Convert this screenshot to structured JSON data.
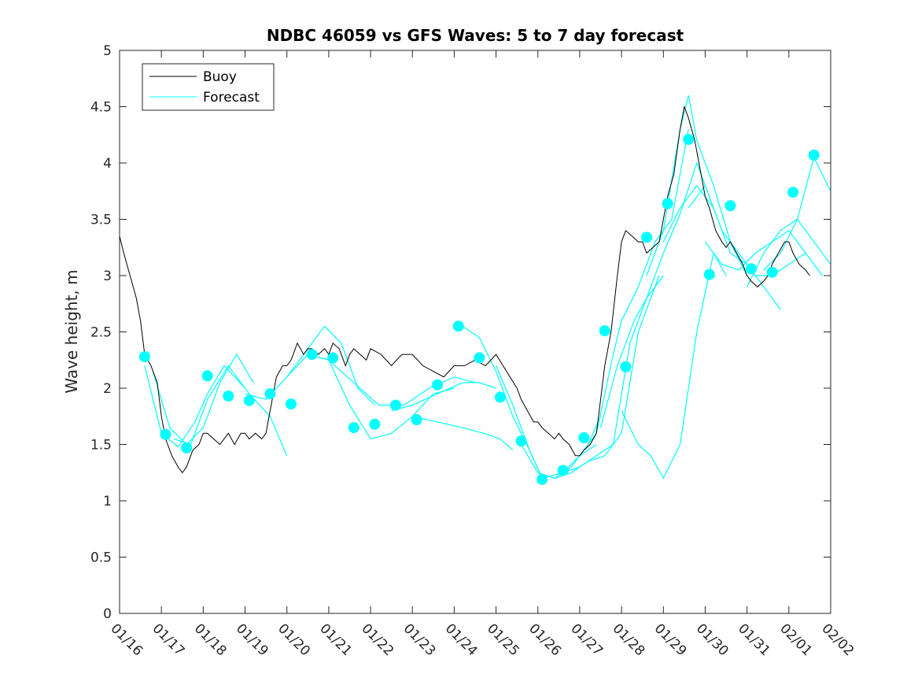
{
  "chart_data": {
    "type": "line",
    "title": "NDBC 46059 vs GFS Waves: 5 to 7 day forecast",
    "xlabel": "",
    "ylabel": "Wave height, m",
    "xlim": [
      0,
      17
    ],
    "ylim": [
      0,
      5
    ],
    "x_tick_labels": [
      "01/16",
      "01/17",
      "01/18",
      "01/19",
      "01/20",
      "01/21",
      "01/22",
      "01/23",
      "01/24",
      "01/25",
      "01/26",
      "01/27",
      "01/28",
      "01/29",
      "01/30",
      "01/31",
      "02/01",
      "02/02"
    ],
    "y_ticks": [
      0,
      0.5,
      1,
      1.5,
      2,
      2.5,
      3,
      3.5,
      4,
      4.5,
      5
    ],
    "y_tick_labels": [
      "0",
      "0.5",
      "1",
      "1.5",
      "2",
      "2.5",
      "3",
      "3.5",
      "4",
      "4.5",
      "5"
    ],
    "x_units": "days since 01/16",
    "legend": {
      "placement": "top-left",
      "entries": [
        "Buoy",
        "Forecast"
      ]
    },
    "colors": {
      "buoy": "#000000",
      "forecast": "#00ffff",
      "axes": "#262626"
    },
    "series": [
      {
        "name": "Buoy",
        "x": [
          0,
          0.1,
          0.25,
          0.4,
          0.5,
          0.6,
          0.75,
          0.9,
          1.0,
          1.1,
          1.25,
          1.4,
          1.5,
          1.6,
          1.75,
          1.9,
          2.0,
          2.1,
          2.25,
          2.4,
          2.5,
          2.6,
          2.75,
          2.9,
          3.0,
          3.1,
          3.25,
          3.4,
          3.5,
          3.6,
          3.75,
          3.9,
          4.0,
          4.1,
          4.25,
          4.4,
          4.5,
          4.6,
          4.75,
          4.9,
          5.0,
          5.1,
          5.25,
          5.4,
          5.5,
          5.6,
          5.75,
          5.9,
          6.0,
          6.25,
          6.5,
          6.75,
          7.0,
          7.25,
          7.5,
          7.75,
          8.0,
          8.25,
          8.5,
          8.75,
          9.0,
          9.25,
          9.5,
          9.6,
          9.75,
          9.9,
          10.0,
          10.1,
          10.25,
          10.4,
          10.5,
          10.6,
          10.75,
          10.9,
          11.0,
          11.1,
          11.25,
          11.4,
          11.5,
          11.6,
          11.75,
          11.9,
          12.0,
          12.1,
          12.25,
          12.4,
          12.5,
          12.6,
          12.75,
          12.9,
          13.0,
          13.1,
          13.25,
          13.4,
          13.5,
          13.6,
          13.75,
          13.9,
          14.0,
          14.1,
          14.25,
          14.4,
          14.5,
          14.6,
          14.75,
          14.9,
          15.0,
          15.1,
          15.25,
          15.4,
          15.5,
          15.6,
          15.75,
          15.9,
          16.0,
          16.1,
          16.25,
          16.4,
          16.5
        ],
        "values": [
          3.35,
          3.2,
          3.0,
          2.8,
          2.6,
          2.3,
          2.2,
          2.05,
          1.75,
          1.55,
          1.4,
          1.3,
          1.25,
          1.3,
          1.45,
          1.5,
          1.6,
          1.6,
          1.55,
          1.5,
          1.55,
          1.6,
          1.5,
          1.6,
          1.6,
          1.55,
          1.6,
          1.55,
          1.6,
          1.8,
          2.1,
          2.2,
          2.2,
          2.25,
          2.4,
          2.3,
          2.35,
          2.35,
          2.3,
          2.35,
          2.3,
          2.4,
          2.35,
          2.2,
          2.3,
          2.35,
          2.3,
          2.25,
          2.35,
          2.3,
          2.2,
          2.3,
          2.3,
          2.2,
          2.15,
          2.1,
          2.2,
          2.2,
          2.25,
          2.2,
          2.3,
          2.15,
          2.0,
          1.9,
          1.8,
          1.7,
          1.7,
          1.65,
          1.6,
          1.55,
          1.6,
          1.55,
          1.5,
          1.4,
          1.4,
          1.45,
          1.5,
          1.6,
          1.9,
          2.2,
          2.5,
          3.0,
          3.3,
          3.4,
          3.35,
          3.3,
          3.3,
          3.2,
          3.25,
          3.3,
          3.5,
          3.7,
          3.9,
          4.3,
          4.5,
          4.4,
          4.2,
          3.9,
          3.7,
          3.6,
          3.4,
          3.3,
          3.25,
          3.3,
          3.2,
          3.1,
          3.0,
          2.95,
          2.9,
          2.95,
          3.0,
          3.1,
          3.2,
          3.3,
          3.3,
          3.2,
          3.1,
          3.05,
          3.0
        ]
      },
      {
        "name": "Forecast",
        "tracks": [
          {
            "x": [
              0.6,
              1.0,
              1.4,
              1.8,
              2.1,
              2.5,
              3.0
            ],
            "values": [
              2.2,
              1.6,
              1.48,
              1.7,
              1.95,
              2.2,
              2.0
            ]
          },
          {
            "x": [
              0.8,
              1.2,
              1.6,
              2.0,
              2.4,
              2.8,
              3.2
            ],
            "values": [
              2.15,
              1.65,
              1.5,
              1.65,
              2.05,
              2.3,
              2.05
            ]
          },
          {
            "x": [
              1.3,
              1.7,
              2.1,
              2.6,
              3.1,
              3.6,
              4.0
            ],
            "values": [
              1.55,
              1.5,
              1.9,
              2.2,
              1.95,
              1.75,
              1.4
            ]
          },
          {
            "x": [
              3.0,
              3.5,
              4.0,
              4.5,
              4.9,
              5.3,
              5.7,
              6.1
            ],
            "values": [
              1.95,
              1.9,
              2.1,
              2.35,
              2.55,
              2.4,
              2.0,
              1.85
            ]
          },
          {
            "x": [
              4.0,
              4.5,
              5.0,
              5.5,
              6.0,
              6.5,
              7.0,
              7.5,
              8.0
            ],
            "values": [
              2.1,
              2.3,
              2.25,
              1.85,
              1.55,
              1.6,
              1.75,
              1.95,
              2.0
            ]
          },
          {
            "x": [
              4.5,
              5.0,
              5.6,
              6.2,
              6.8,
              7.4,
              8.0,
              8.5
            ],
            "values": [
              2.3,
              2.25,
              2.05,
              1.85,
              1.85,
              2.0,
              2.1,
              2.05
            ]
          },
          {
            "x": [
              6.5,
              7.0,
              7.6,
              8.2,
              8.6,
              9.0
            ],
            "values": [
              1.8,
              1.85,
              1.95,
              2.05,
              2.05,
              2.0
            ]
          },
          {
            "x": [
              7.0,
              7.6,
              8.2,
              8.7,
              9.1,
              9.4
            ],
            "values": [
              1.75,
              1.7,
              1.65,
              1.6,
              1.55,
              1.45
            ]
          },
          {
            "x": [
              8.2,
              8.6,
              9.0,
              9.4,
              9.8,
              10.1
            ],
            "values": [
              2.55,
              2.45,
              2.15,
              1.75,
              1.45,
              1.2
            ]
          },
          {
            "x": [
              9.0,
              9.4,
              9.8,
              10.1,
              10.6,
              11.0,
              11.4
            ],
            "values": [
              2.2,
              1.85,
              1.45,
              1.2,
              1.25,
              1.4,
              1.5
            ]
          },
          {
            "x": [
              9.6,
              10.0,
              10.4,
              10.8,
              11.2,
              11.5
            ],
            "values": [
              1.5,
              1.25,
              1.2,
              1.3,
              1.5,
              1.75
            ]
          },
          {
            "x": [
              10.0,
              10.4,
              10.8,
              11.2,
              11.6,
              12.0,
              12.4,
              12.9
            ],
            "values": [
              1.25,
              1.2,
              1.25,
              1.35,
              1.4,
              1.6,
              2.5,
              3.0
            ]
          },
          {
            "x": [
              10.6,
              11.0,
              11.4,
              11.8,
              12.2,
              12.6,
              13.0
            ],
            "values": [
              1.25,
              1.3,
              1.4,
              1.5,
              2.4,
              2.8,
              3.0
            ]
          },
          {
            "x": [
              11.0,
              11.4,
              11.8,
              12.0,
              12.4,
              12.8,
              13.2,
              13.6
            ],
            "values": [
              1.4,
              1.6,
              2.3,
              2.6,
              2.9,
              3.3,
              3.5,
              4.3
            ]
          },
          {
            "x": [
              11.5,
              11.9,
              12.3,
              12.6,
              13.0,
              13.4,
              13.8,
              14.2
            ],
            "values": [
              1.65,
              2.2,
              2.6,
              2.8,
              3.2,
              3.55,
              4.0,
              3.6
            ]
          },
          {
            "x": [
              12.0,
              12.4,
              12.7,
              13.0,
              13.4,
              13.8,
              14.2,
              14.5
            ],
            "values": [
              1.8,
              1.5,
              1.4,
              1.2,
              1.5,
              2.5,
              3.2,
              3.0
            ]
          },
          {
            "x": [
              12.6,
              13.0,
              13.4,
              13.6,
              13.8,
              14.2,
              14.6,
              15.0
            ],
            "values": [
              3.0,
              3.4,
              4.3,
              4.6,
              4.2,
              3.8,
              3.3,
              3.0
            ]
          },
          {
            "x": [
              13.0,
              13.4,
              13.8,
              14.2,
              14.6,
              15.0,
              15.4,
              15.8
            ],
            "values": [
              3.3,
              3.6,
              3.8,
              3.6,
              3.2,
              3.1,
              2.9,
              2.7
            ]
          },
          {
            "x": [
              13.6,
              14.0,
              14.4,
              14.8,
              15.2,
              15.6,
              16.0,
              16.4
            ],
            "values": [
              3.6,
              3.8,
              3.4,
              3.2,
              3.0,
              3.0,
              3.1,
              3.2
            ]
          },
          {
            "x": [
              14.0,
              14.4,
              14.8,
              15.2,
              15.6,
              16.0,
              16.4,
              16.8
            ],
            "values": [
              3.3,
              3.1,
              3.05,
              3.2,
              3.3,
              3.4,
              3.2,
              3.0
            ]
          },
          {
            "x": [
              15.0,
              15.4,
              15.8,
              16.2,
              16.6,
              17.0
            ],
            "values": [
              2.9,
              3.2,
              3.4,
              3.5,
              3.3,
              3.1
            ]
          },
          {
            "x": [
              15.4,
              15.8,
              16.2,
              16.6,
              17.0
            ],
            "values": [
              3.05,
              3.2,
              3.5,
              4.05,
              3.75
            ]
          }
        ],
        "markers": {
          "x": [
            0.6,
            1.1,
            1.6,
            2.1,
            2.6,
            3.1,
            3.6,
            4.1,
            4.6,
            5.1,
            5.6,
            6.1,
            6.6,
            7.1,
            7.6,
            8.1,
            8.6,
            9.1,
            9.6,
            10.1,
            10.6,
            11.1,
            11.6,
            12.1,
            12.6,
            13.1,
            13.6,
            14.1,
            14.6,
            15.1,
            15.6,
            16.1,
            16.6
          ],
          "values": [
            2.28,
            1.59,
            1.47,
            2.11,
            1.93,
            1.89,
            1.95,
            1.86,
            2.3,
            2.27,
            1.65,
            1.68,
            1.85,
            1.72,
            2.03,
            2.55,
            2.27,
            1.92,
            1.53,
            1.19,
            1.27,
            1.56,
            2.51,
            2.19,
            3.34,
            3.64,
            4.21,
            3.01,
            3.62,
            3.06,
            3.03,
            3.74,
            4.07
          ]
        }
      }
    ]
  }
}
